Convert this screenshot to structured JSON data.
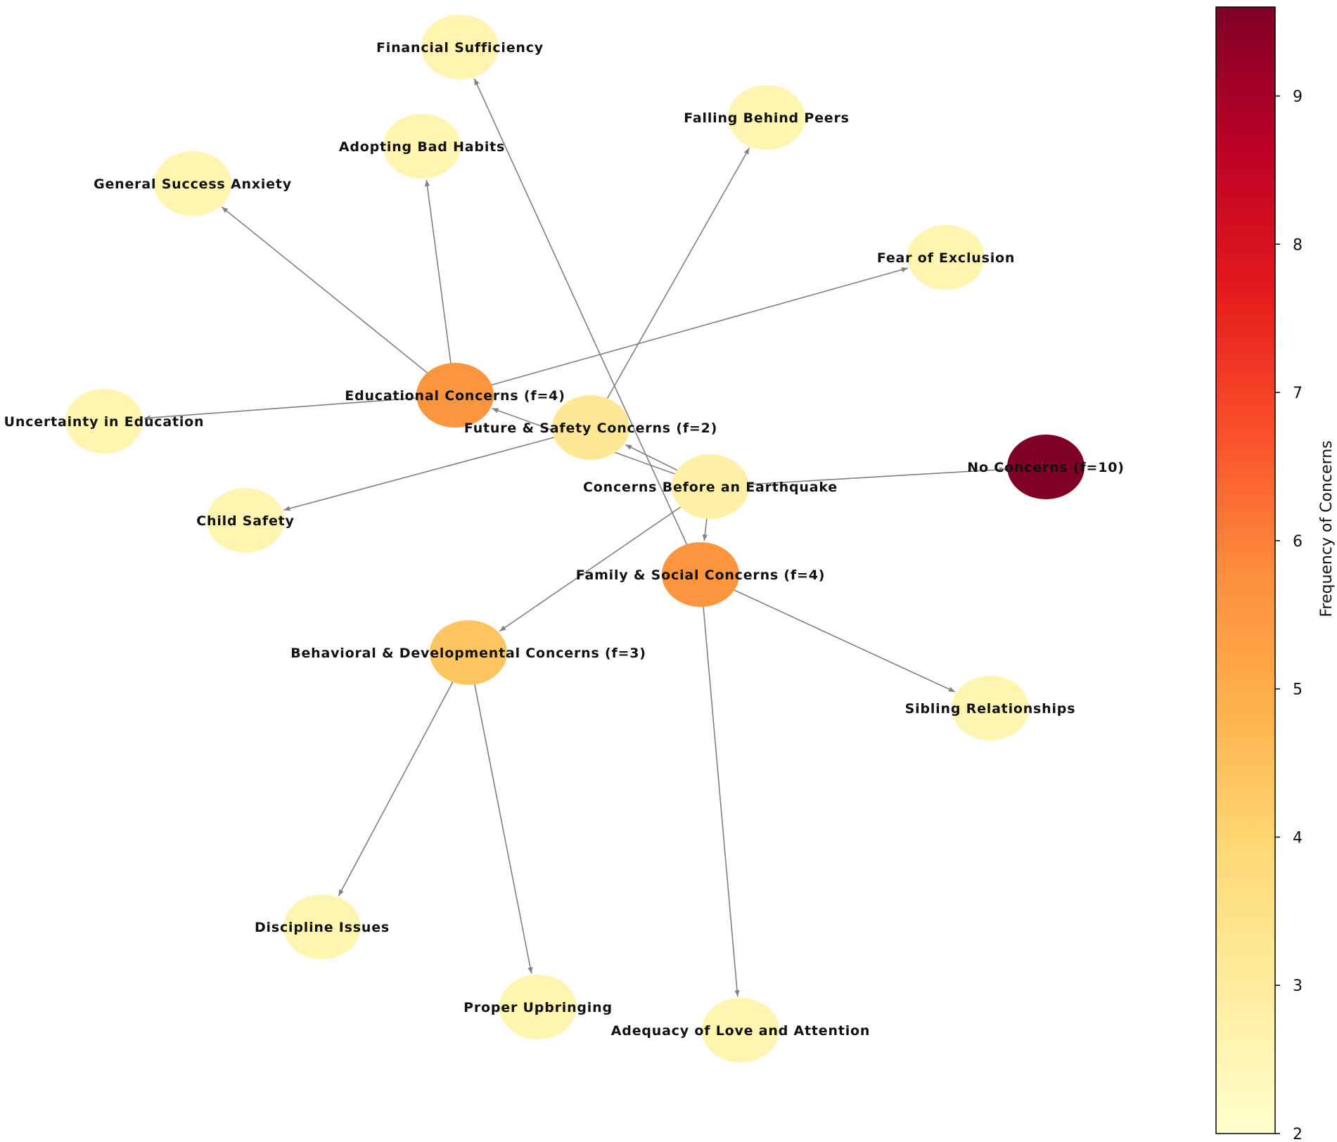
{
  "nodes": [
    {
      "id": "financial",
      "label": "Financial Sufficiency",
      "value": 2.6
    },
    {
      "id": "falling",
      "label": "Falling Behind Peers",
      "value": 2.6
    },
    {
      "id": "habits",
      "label": "Adopting Bad Habits",
      "value": 2.6
    },
    {
      "id": "anxiety",
      "label": "General Success Anxiety",
      "value": 2.6
    },
    {
      "id": "exclusion",
      "label": "Fear of Exclusion",
      "value": 2.6
    },
    {
      "id": "educational",
      "label": "Educational Concerns (f=4)",
      "value": 5.6
    },
    {
      "id": "uncertainty",
      "label": "Uncertainty in Education",
      "value": 2.6
    },
    {
      "id": "future",
      "label": "Future & Safety Concerns (f=2)",
      "value": 3.2
    },
    {
      "id": "root",
      "label": "Concerns Before an Earthquake",
      "value": 2.8
    },
    {
      "id": "none",
      "label": "No Concerns (f=10)",
      "value": 9.6
    },
    {
      "id": "child",
      "label": "Child Safety",
      "value": 2.6
    },
    {
      "id": "family",
      "label": "Family & Social Concerns (f=4)",
      "value": 5.6
    },
    {
      "id": "behavioral",
      "label": "Behavioral & Developmental Concerns (f=3)",
      "value": 4.4
    },
    {
      "id": "sibling",
      "label": "Sibling Relationships",
      "value": 2.6
    },
    {
      "id": "discipline",
      "label": "Discipline Issues",
      "value": 2.6
    },
    {
      "id": "upbringing",
      "label": "Proper Upbringing",
      "value": 2.6
    },
    {
      "id": "love",
      "label": "Adequacy of Love and Attention",
      "value": 2.6
    }
  ],
  "edges": [
    {
      "from": "root",
      "to": "educational"
    },
    {
      "from": "root",
      "to": "future"
    },
    {
      "from": "root",
      "to": "family"
    },
    {
      "from": "root",
      "to": "behavioral"
    },
    {
      "from": "root",
      "to": "none"
    },
    {
      "from": "educational",
      "to": "anxiety"
    },
    {
      "from": "educational",
      "to": "habits"
    },
    {
      "from": "educational",
      "to": "exclusion"
    },
    {
      "from": "educational",
      "to": "uncertainty"
    },
    {
      "from": "future",
      "to": "falling"
    },
    {
      "from": "future",
      "to": "child"
    },
    {
      "from": "family",
      "to": "financial"
    },
    {
      "from": "family",
      "to": "sibling"
    },
    {
      "from": "family",
      "to": "love"
    },
    {
      "from": "behavioral",
      "to": "discipline"
    },
    {
      "from": "behavioral",
      "to": "upbringing"
    }
  ],
  "colorbar": {
    "title": "Frequency of Concerns",
    "min": 2,
    "max": 9.6,
    "ticks": [
      "2",
      "3",
      "4",
      "5",
      "6",
      "7",
      "8",
      "9"
    ],
    "colormap": "YlOrRd",
    "stops": [
      "#ffffcc",
      "#ffeda0",
      "#fed976",
      "#feb24c",
      "#fd8d3c",
      "#fc4e2a",
      "#e31a1c",
      "#bd0026",
      "#800026"
    ]
  },
  "colors": {
    "edge": "#808080"
  }
}
